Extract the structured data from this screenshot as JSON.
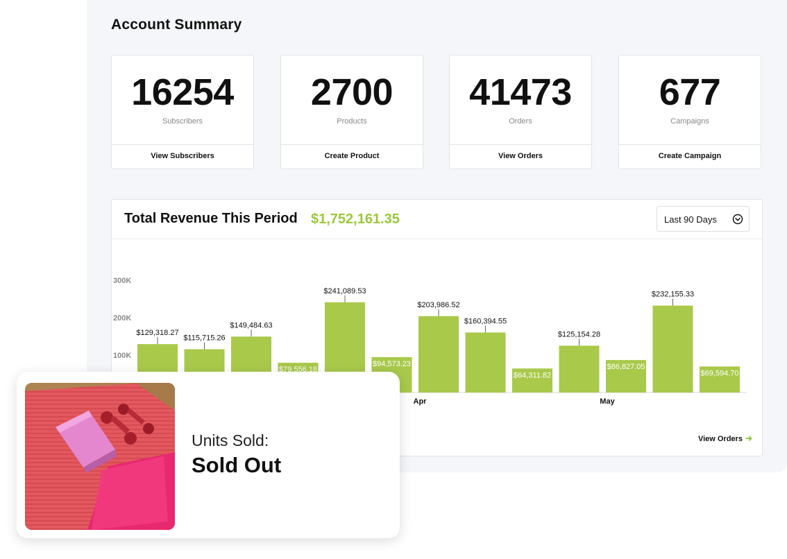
{
  "account_summary": {
    "title": "Account Summary",
    "stats": [
      {
        "value": "16254",
        "label": "Subscribers",
        "action": "View Subscribers"
      },
      {
        "value": "2700",
        "label": "Products",
        "action": "Create Product"
      },
      {
        "value": "41473",
        "label": "Orders",
        "action": "View Orders"
      },
      {
        "value": "677",
        "label": "Campaigns",
        "action": "Create Campaign"
      }
    ]
  },
  "revenue": {
    "title": "Total Revenue This Period",
    "total": "$1,752,161.35",
    "range_select": "Last 90 Days",
    "view_orders": "View Orders",
    "accent_color": "#a9c94b"
  },
  "chart_data": {
    "type": "bar",
    "y_ticks": [
      "100K",
      "200K",
      "300K"
    ],
    "x_labels": [
      {
        "label": "Apr",
        "category_index": 6
      },
      {
        "label": "May",
        "category_index": 10
      }
    ],
    "values": [
      129318.27,
      115715.26,
      149484.63,
      79556.18,
      241089.53,
      94573.23,
      203986.52,
      160394.55,
      64311.82,
      125154.28,
      86827.05,
      232155.33,
      69594.7
    ],
    "value_labels": [
      "$129,318.27",
      "$115,715.26",
      "$149,484.63",
      "$79,556.18",
      "$241,089.53",
      "$94,573.23",
      "$203,986.52",
      "$160,394.55",
      "$64,311.82",
      "$125,154.28",
      "$86,827.05",
      "$232,155.33",
      "$69,594.70"
    ],
    "ylim": [
      0,
      300000
    ],
    "bar_color": "#a9c94b"
  },
  "units_card": {
    "label": "Units Sold:",
    "value": "Sold Out",
    "image_icon": "yoga-mat-block-dumbbells-photo"
  }
}
